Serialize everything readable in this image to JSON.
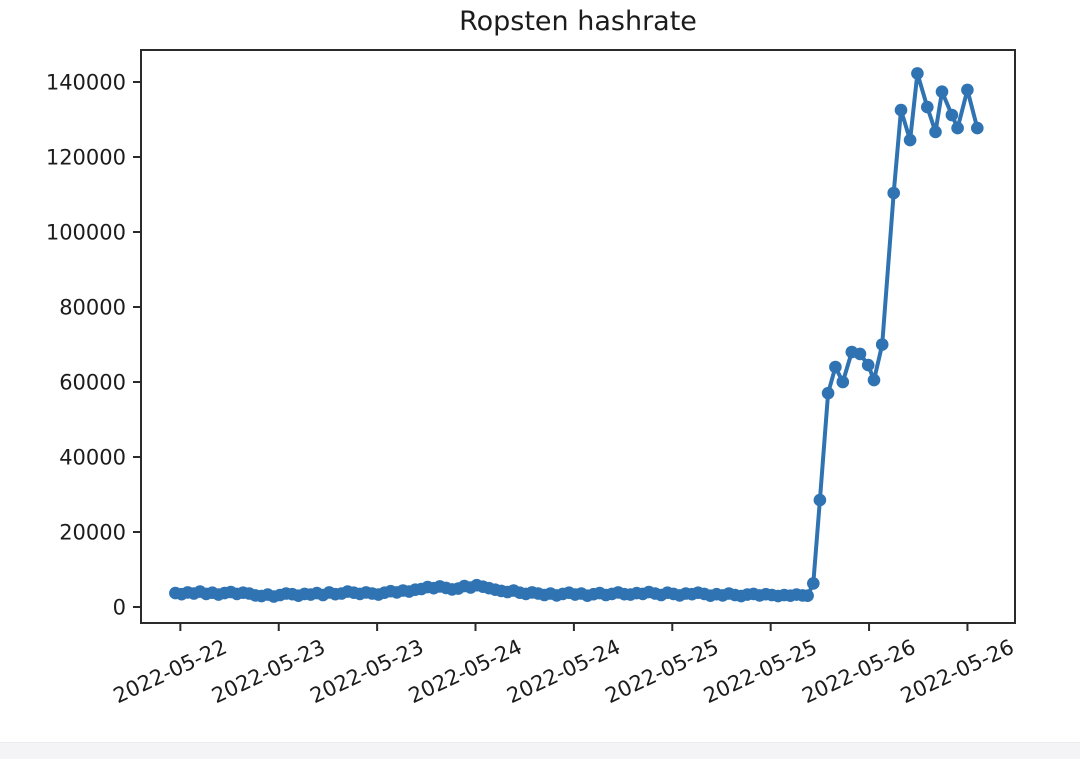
{
  "page": {
    "background": "#ffffff",
    "bottom_strip_color": "#f4f4f6"
  },
  "chart_data": {
    "type": "line",
    "title": "Ropsten hashrate",
    "xlabel": "",
    "ylabel": "",
    "legend": null,
    "grid": false,
    "series_color": "#2f73b2",
    "axis_color": "#2b2b2b",
    "text_color": "#1c1c1c",
    "marker": "circle",
    "x_unit": "hours since 2022-05-22 00:00",
    "xlim_hours": [
      7.2,
      113.8
    ],
    "ylim": [
      -4270,
      148530
    ],
    "x_ticks": [
      {
        "hour": 12,
        "label": "2022-05-22"
      },
      {
        "hour": 24,
        "label": "2022-05-23"
      },
      {
        "hour": 36,
        "label": "2022-05-23"
      },
      {
        "hour": 48,
        "label": "2022-05-24"
      },
      {
        "hour": 60,
        "label": "2022-05-24"
      },
      {
        "hour": 72,
        "label": "2022-05-25"
      },
      {
        "hour": 84,
        "label": "2022-05-25"
      },
      {
        "hour": 96,
        "label": "2022-05-26"
      },
      {
        "hour": 108,
        "label": "2022-05-26"
      }
    ],
    "y_ticks": [
      0,
      20000,
      40000,
      60000,
      80000,
      100000,
      120000,
      140000
    ],
    "points": [
      [
        11.4,
        3700
      ],
      [
        12.15,
        3400
      ],
      [
        12.9,
        3900
      ],
      [
        13.65,
        3600
      ],
      [
        14.4,
        4100
      ],
      [
        15.15,
        3500
      ],
      [
        15.9,
        3800
      ],
      [
        16.65,
        3300
      ],
      [
        17.4,
        3700
      ],
      [
        18.15,
        4000
      ],
      [
        18.9,
        3500
      ],
      [
        19.65,
        3800
      ],
      [
        20.4,
        3600
      ],
      [
        21.15,
        3100
      ],
      [
        21.9,
        2900
      ],
      [
        22.65,
        3300
      ],
      [
        23.4,
        2800
      ],
      [
        24.15,
        3200
      ],
      [
        24.9,
        3600
      ],
      [
        25.65,
        3400
      ],
      [
        26.4,
        3000
      ],
      [
        27.15,
        3500
      ],
      [
        27.9,
        3300
      ],
      [
        28.65,
        3700
      ],
      [
        29.4,
        3200
      ],
      [
        30.15,
        3900
      ],
      [
        30.9,
        3400
      ],
      [
        31.65,
        3600
      ],
      [
        32.4,
        4100
      ],
      [
        33.15,
        3800
      ],
      [
        33.9,
        3500
      ],
      [
        34.65,
        3900
      ],
      [
        35.4,
        3600
      ],
      [
        36.15,
        3300
      ],
      [
        36.9,
        3800
      ],
      [
        37.65,
        4200
      ],
      [
        38.4,
        3900
      ],
      [
        39.15,
        4400
      ],
      [
        39.9,
        4100
      ],
      [
        40.65,
        4600
      ],
      [
        41.4,
        4800
      ],
      [
        42.15,
        5300
      ],
      [
        42.9,
        5000
      ],
      [
        43.65,
        5500
      ],
      [
        44.4,
        5100
      ],
      [
        45.15,
        4700
      ],
      [
        45.9,
        4900
      ],
      [
        46.65,
        5600
      ],
      [
        47.4,
        5200
      ],
      [
        48.15,
        5800
      ],
      [
        48.9,
        5400
      ],
      [
        49.65,
        5000
      ],
      [
        50.4,
        4600
      ],
      [
        51.15,
        4300
      ],
      [
        51.9,
        4000
      ],
      [
        52.65,
        4400
      ],
      [
        53.4,
        3800
      ],
      [
        54.15,
        3500
      ],
      [
        54.9,
        3900
      ],
      [
        55.65,
        3600
      ],
      [
        56.4,
        3200
      ],
      [
        57.15,
        3600
      ],
      [
        57.9,
        3100
      ],
      [
        58.65,
        3500
      ],
      [
        59.4,
        3800
      ],
      [
        60.15,
        3300
      ],
      [
        60.9,
        3600
      ],
      [
        61.65,
        3000
      ],
      [
        62.4,
        3400
      ],
      [
        63.15,
        3700
      ],
      [
        63.9,
        3200
      ],
      [
        64.65,
        3500
      ],
      [
        65.4,
        3900
      ],
      [
        66.15,
        3400
      ],
      [
        66.9,
        3300
      ],
      [
        67.65,
        3700
      ],
      [
        68.4,
        3500
      ],
      [
        69.15,
        4000
      ],
      [
        69.9,
        3600
      ],
      [
        70.65,
        3200
      ],
      [
        71.4,
        3800
      ],
      [
        72.15,
        3500
      ],
      [
        72.9,
        3100
      ],
      [
        73.65,
        3600
      ],
      [
        74.4,
        3400
      ],
      [
        75.15,
        3800
      ],
      [
        75.9,
        3500
      ],
      [
        76.65,
        3000
      ],
      [
        77.4,
        3400
      ],
      [
        78.15,
        3100
      ],
      [
        78.9,
        3600
      ],
      [
        79.65,
        3200
      ],
      [
        80.4,
        2900
      ],
      [
        81.15,
        3300
      ],
      [
        81.9,
        3500
      ],
      [
        82.65,
        3100
      ],
      [
        83.4,
        3400
      ],
      [
        84.15,
        3200
      ],
      [
        84.9,
        2900
      ],
      [
        85.65,
        3200
      ],
      [
        86.4,
        3000
      ],
      [
        87.15,
        3300
      ],
      [
        87.9,
        3100
      ],
      [
        88.5,
        3000
      ],
      [
        89.2,
        6300
      ],
      [
        90.0,
        28500
      ],
      [
        91.0,
        57000
      ],
      [
        91.9,
        64000
      ],
      [
        92.8,
        60000
      ],
      [
        93.9,
        68000
      ],
      [
        94.9,
        67500
      ],
      [
        95.9,
        64500
      ],
      [
        96.6,
        60500
      ],
      [
        97.6,
        70000
      ],
      [
        99.0,
        110400
      ],
      [
        99.9,
        132500
      ],
      [
        101.0,
        124500
      ],
      [
        101.9,
        142300
      ],
      [
        103.1,
        133300
      ],
      [
        104.1,
        126700
      ],
      [
        104.9,
        137400
      ],
      [
        106.1,
        131200
      ],
      [
        106.8,
        127700
      ],
      [
        108.0,
        137900
      ],
      [
        109.2,
        127700
      ]
    ]
  }
}
